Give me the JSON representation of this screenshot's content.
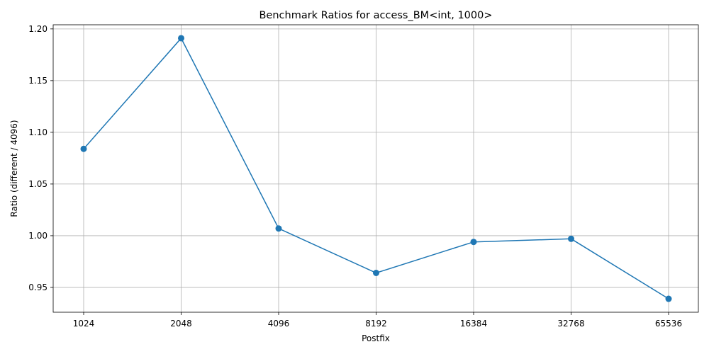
{
  "chart_data": {
    "type": "line",
    "title": "Benchmark Ratios for access_BM<int, 1000>",
    "xlabel": "Postfix",
    "ylabel": "Ratio (different / 4096)",
    "categories": [
      "1024",
      "2048",
      "4096",
      "8192",
      "16384",
      "32768",
      "65536"
    ],
    "series": [
      {
        "values": [
          1.084,
          1.191,
          1.007,
          0.964,
          0.994,
          0.997,
          0.939
        ]
      }
    ],
    "yticks": [
      0.95,
      1.0,
      1.05,
      1.1,
      1.15,
      1.2
    ],
    "ytick_labels": [
      "0.95",
      "1.00",
      "1.05",
      "1.10",
      "1.15",
      "1.20"
    ],
    "ylim": [
      0.926,
      1.204
    ],
    "grid": true,
    "legend": false,
    "marker": "circle",
    "color": "#1f77b4"
  }
}
